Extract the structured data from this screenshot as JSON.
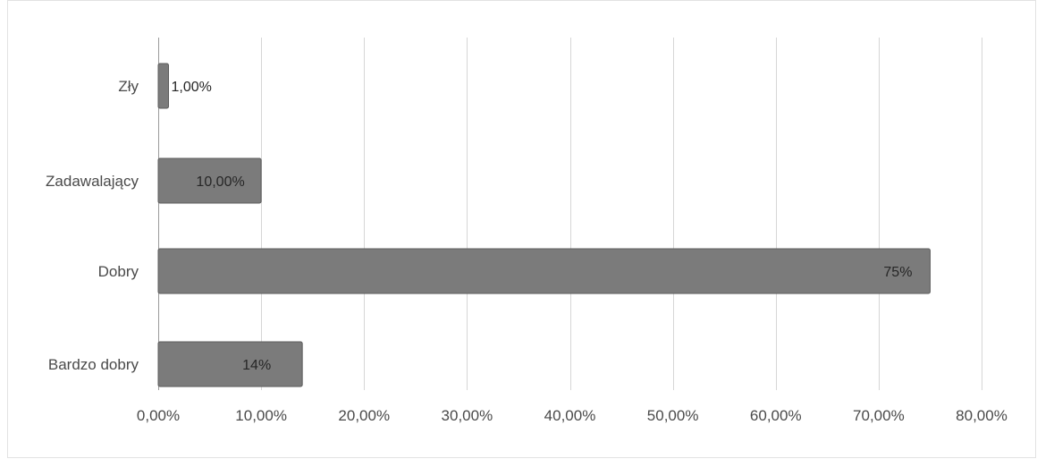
{
  "colors": {
    "bar": "#7b7b7b",
    "bar_stroke": "#5c5c5c",
    "grid": "#d6d6d6",
    "text": "#4a4a4a"
  },
  "chart_data": {
    "type": "bar",
    "orientation": "horizontal",
    "title": "",
    "xlabel": "",
    "ylabel": "",
    "categories": [
      "Zły",
      "Zadawalający",
      "Dobry",
      "Bardzo dobry"
    ],
    "values": [
      1,
      10,
      75,
      14
    ],
    "data_labels": [
      "1,00%",
      "10,00%",
      "75%",
      "14%"
    ],
    "xlim": [
      0,
      80
    ],
    "x_ticks": [
      0,
      10,
      20,
      30,
      40,
      50,
      60,
      70,
      80
    ],
    "x_tick_labels": [
      "0,00%",
      "10,00%",
      "20,00%",
      "30,00%",
      "40,00%",
      "50,00%",
      "60,00%",
      "70,00%",
      "80,00%"
    ],
    "grid": true,
    "legend": "none"
  }
}
